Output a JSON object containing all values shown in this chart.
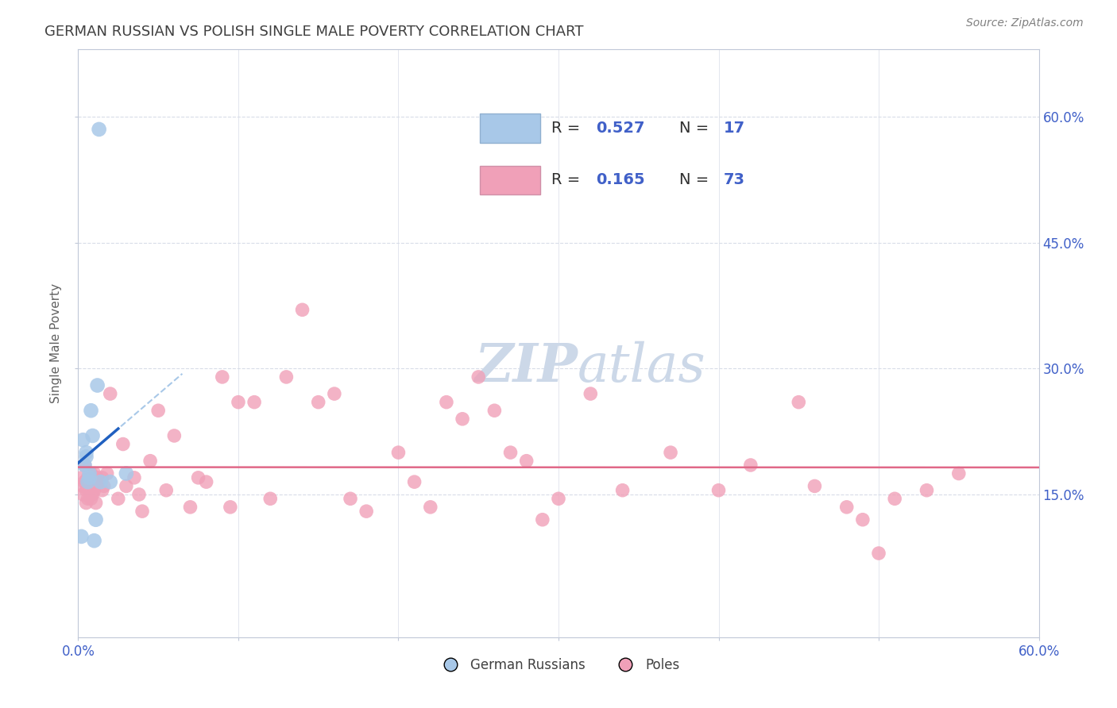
{
  "title": "GERMAN RUSSIAN VS POLISH SINGLE MALE POVERTY CORRELATION CHART",
  "source_text": "Source: ZipAtlas.com",
  "ylabel": "Single Male Poverty",
  "xlim": [
    0.0,
    0.6
  ],
  "ylim": [
    -0.02,
    0.68
  ],
  "xtick_positions": [
    0.0,
    0.6
  ],
  "xticklabels": [
    "0.0%",
    "60.0%"
  ],
  "ytick_positions": [
    0.15,
    0.3,
    0.45,
    0.6
  ],
  "yticklabels": [
    "15.0%",
    "30.0%",
    "45.0%",
    "60.0%"
  ],
  "german_russian_color": "#a8c8e8",
  "poles_color": "#f0a0b8",
  "german_russian_R": 0.527,
  "german_russian_N": 17,
  "poles_R": 0.165,
  "poles_N": 73,
  "blue_line_color": "#2060c0",
  "pink_line_color": "#e06888",
  "grid_color": "#d8dce8",
  "watermark_color": "#ccd8e8",
  "legend_label_1": "German Russians",
  "legend_label_2": "Poles",
  "blue_text_color": "#4060c8",
  "title_color": "#404040",
  "german_russian_x": [
    0.002,
    0.003,
    0.004,
    0.005,
    0.005,
    0.006,
    0.007,
    0.007,
    0.008,
    0.009,
    0.01,
    0.011,
    0.012,
    0.013,
    0.014,
    0.02,
    0.03
  ],
  "german_russian_y": [
    0.1,
    0.215,
    0.185,
    0.195,
    0.2,
    0.165,
    0.175,
    0.17,
    0.25,
    0.22,
    0.095,
    0.12,
    0.28,
    0.585,
    0.165,
    0.165,
    0.175
  ],
  "poles_x": [
    0.002,
    0.003,
    0.003,
    0.004,
    0.004,
    0.005,
    0.005,
    0.006,
    0.006,
    0.007,
    0.007,
    0.008,
    0.008,
    0.009,
    0.009,
    0.01,
    0.01,
    0.011,
    0.012,
    0.013,
    0.015,
    0.015,
    0.016,
    0.018,
    0.02,
    0.025,
    0.028,
    0.03,
    0.035,
    0.038,
    0.04,
    0.045,
    0.05,
    0.055,
    0.06,
    0.07,
    0.075,
    0.08,
    0.09,
    0.095,
    0.1,
    0.11,
    0.12,
    0.13,
    0.14,
    0.15,
    0.16,
    0.17,
    0.18,
    0.2,
    0.21,
    0.22,
    0.23,
    0.24,
    0.25,
    0.26,
    0.27,
    0.28,
    0.29,
    0.3,
    0.32,
    0.34,
    0.37,
    0.4,
    0.42,
    0.45,
    0.46,
    0.48,
    0.49,
    0.5,
    0.51,
    0.53,
    0.55
  ],
  "poles_y": [
    0.17,
    0.16,
    0.15,
    0.185,
    0.165,
    0.155,
    0.14,
    0.17,
    0.145,
    0.16,
    0.155,
    0.175,
    0.145,
    0.165,
    0.15,
    0.175,
    0.155,
    0.14,
    0.17,
    0.165,
    0.17,
    0.155,
    0.16,
    0.175,
    0.27,
    0.145,
    0.21,
    0.16,
    0.17,
    0.15,
    0.13,
    0.19,
    0.25,
    0.155,
    0.22,
    0.135,
    0.17,
    0.165,
    0.29,
    0.135,
    0.26,
    0.26,
    0.145,
    0.29,
    0.37,
    0.26,
    0.27,
    0.145,
    0.13,
    0.2,
    0.165,
    0.135,
    0.26,
    0.24,
    0.29,
    0.25,
    0.2,
    0.19,
    0.12,
    0.145,
    0.27,
    0.155,
    0.2,
    0.155,
    0.185,
    0.26,
    0.16,
    0.135,
    0.12,
    0.08,
    0.145,
    0.155,
    0.175
  ]
}
